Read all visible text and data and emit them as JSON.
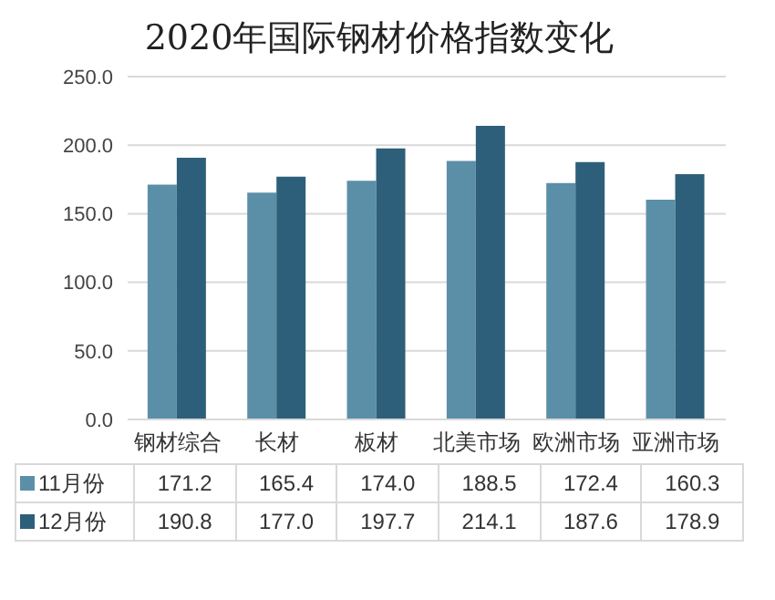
{
  "chart_data": {
    "type": "bar",
    "title": "2020年国际钢材价格指数变化",
    "categories": [
      "钢材综合",
      "长材",
      "板材",
      "北美市场",
      "欧洲市场",
      "亚洲市场"
    ],
    "series": [
      {
        "name": "11月份",
        "color": "#5b8fa8",
        "values": [
          171.2,
          165.4,
          174.0,
          188.5,
          172.4,
          160.3
        ],
        "value_labels": [
          "171.2",
          "165.4",
          "174.0",
          "188.5",
          "172.4",
          "160.3"
        ]
      },
      {
        "name": "12月份",
        "color": "#2e5f7a",
        "values": [
          190.8,
          177.0,
          197.7,
          214.1,
          187.6,
          178.9
        ],
        "value_labels": [
          "190.8",
          "177.0",
          "197.7",
          "214.1",
          "187.6",
          "178.9"
        ]
      }
    ],
    "ylim": [
      0,
      250
    ],
    "yticks": [
      {
        "value": 0,
        "label": "0.0"
      },
      {
        "value": 50,
        "label": "50.0"
      },
      {
        "value": 100,
        "label": "100.0"
      },
      {
        "value": 150,
        "label": "150.0"
      },
      {
        "value": 200,
        "label": "200.0"
      },
      {
        "value": 250,
        "label": "250.0"
      }
    ],
    "grid": "y",
    "legend": "bottom"
  }
}
